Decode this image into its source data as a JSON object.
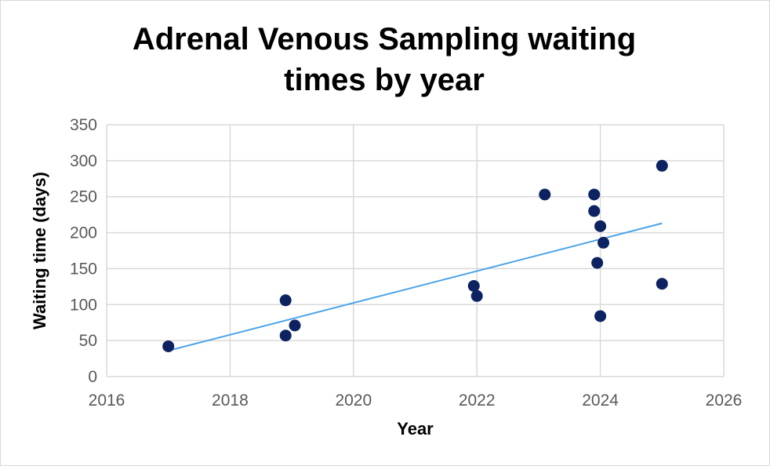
{
  "chart_data": {
    "type": "scatter",
    "title_line1": "Adrenal Venous Sampling waiting",
    "title_line2": "times by year",
    "xlabel": "Year",
    "ylabel": "Waiting time (days)",
    "xlim": [
      2016,
      2026
    ],
    "ylim": [
      0,
      350
    ],
    "xticks": [
      2016,
      2018,
      2020,
      2022,
      2024,
      2026
    ],
    "yticks": [
      0,
      50,
      100,
      150,
      200,
      250,
      300,
      350
    ],
    "grid": true,
    "legend": "none",
    "colors": {
      "points": "#0d2260",
      "trendline": "#4aa3e8",
      "grid": "#d9d9d9"
    },
    "points": [
      {
        "x": 2017.0,
        "y": 42
      },
      {
        "x": 2018.9,
        "y": 106
      },
      {
        "x": 2018.9,
        "y": 57
      },
      {
        "x": 2019.05,
        "y": 71
      },
      {
        "x": 2021.95,
        "y": 126
      },
      {
        "x": 2022.0,
        "y": 112
      },
      {
        "x": 2023.1,
        "y": 253
      },
      {
        "x": 2023.9,
        "y": 253
      },
      {
        "x": 2023.9,
        "y": 230
      },
      {
        "x": 2023.95,
        "y": 158
      },
      {
        "x": 2024.0,
        "y": 209
      },
      {
        "x": 2024.0,
        "y": 84
      },
      {
        "x": 2024.05,
        "y": 186
      },
      {
        "x": 2025.0,
        "y": 293
      },
      {
        "x": 2025.0,
        "y": 129
      }
    ],
    "trendline": {
      "type": "linear",
      "x": [
        2017.0,
        2025.0
      ],
      "y": [
        36,
        213
      ]
    }
  }
}
